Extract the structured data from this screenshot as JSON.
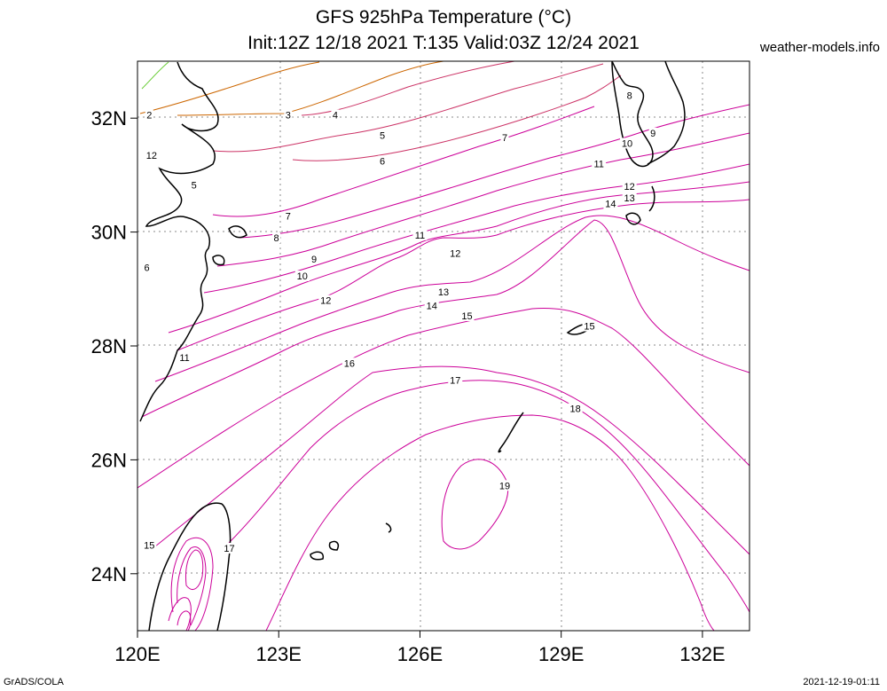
{
  "title": {
    "line1": "GFS 925hPa Temperature (°C)",
    "line2": "Init:12Z 12/18 2021 T:135 Valid:03Z 12/24 2021"
  },
  "source_label": "weather-models.info",
  "footer": {
    "left": "GrADS/COLA",
    "right": "2021-12-19-01:11"
  },
  "map": {
    "lon_range": [
      120,
      133
    ],
    "lat_range": [
      23,
      33
    ],
    "x_ticks": [
      {
        "value": 120,
        "label": "120E"
      },
      {
        "value": 123,
        "label": "123E"
      },
      {
        "value": 126,
        "label": "126E"
      },
      {
        "value": 129,
        "label": "129E"
      },
      {
        "value": 132,
        "label": "132E"
      }
    ],
    "y_ticks": [
      {
        "value": 24,
        "label": "24N"
      },
      {
        "value": 26,
        "label": "26N"
      },
      {
        "value": 28,
        "label": "28N"
      },
      {
        "value": 30,
        "label": "30N"
      },
      {
        "value": 32,
        "label": "32N"
      }
    ],
    "grid": true,
    "colors": {
      "warm": "#cc0099",
      "mid": "#cc3366",
      "cool": "#cc6600",
      "cold": "#66cc33",
      "coast": "#000000",
      "grid": "#888888"
    },
    "contour_labels": [
      {
        "text": "2",
        "lon": 120.25,
        "lat": 32.06
      },
      {
        "text": "3",
        "lon": 123.2,
        "lat": 32.06
      },
      {
        "text": "4",
        "lon": 124.2,
        "lat": 32.06
      },
      {
        "text": "5",
        "lon": 125.2,
        "lat": 31.7
      },
      {
        "text": "6",
        "lon": 125.2,
        "lat": 31.25
      },
      {
        "text": "7",
        "lon": 127.8,
        "lat": 31.66
      },
      {
        "text": "8",
        "lon": 130.45,
        "lat": 32.4
      },
      {
        "text": "9",
        "lon": 130.95,
        "lat": 31.74
      },
      {
        "text": "10",
        "lon": 130.4,
        "lat": 31.56
      },
      {
        "text": "11",
        "lon": 129.8,
        "lat": 31.2
      },
      {
        "text": "12",
        "lon": 130.45,
        "lat": 30.8
      },
      {
        "text": "13",
        "lon": 130.45,
        "lat": 30.6
      },
      {
        "text": "14",
        "lon": 130.05,
        "lat": 30.5
      },
      {
        "text": "12",
        "lon": 120.3,
        "lat": 31.35
      },
      {
        "text": "5",
        "lon": 121.2,
        "lat": 30.83
      },
      {
        "text": "7",
        "lon": 123.2,
        "lat": 30.28
      },
      {
        "text": "8",
        "lon": 122.95,
        "lat": 29.9
      },
      {
        "text": "9",
        "lon": 123.75,
        "lat": 29.53
      },
      {
        "text": "10",
        "lon": 123.5,
        "lat": 29.23
      },
      {
        "text": "6",
        "lon": 120.2,
        "lat": 29.38
      },
      {
        "text": "11",
        "lon": 126.0,
        "lat": 29.95
      },
      {
        "text": "12",
        "lon": 126.75,
        "lat": 29.63
      },
      {
        "text": "13",
        "lon": 126.5,
        "lat": 28.95
      },
      {
        "text": "14",
        "lon": 126.25,
        "lat": 28.71
      },
      {
        "text": "15",
        "lon": 127.0,
        "lat": 28.53
      },
      {
        "text": "12",
        "lon": 124.0,
        "lat": 28.8
      },
      {
        "text": "11",
        "lon": 121.0,
        "lat": 27.8
      },
      {
        "text": "15",
        "lon": 129.6,
        "lat": 28.35
      },
      {
        "text": "16",
        "lon": 124.5,
        "lat": 27.7
      },
      {
        "text": "17",
        "lon": 126.75,
        "lat": 27.4
      },
      {
        "text": "18",
        "lon": 129.3,
        "lat": 26.9
      },
      {
        "text": "19",
        "lon": 127.8,
        "lat": 25.55
      },
      {
        "text": "15",
        "lon": 120.25,
        "lat": 24.5
      },
      {
        "text": "17",
        "lon": 121.95,
        "lat": 24.45
      }
    ]
  }
}
